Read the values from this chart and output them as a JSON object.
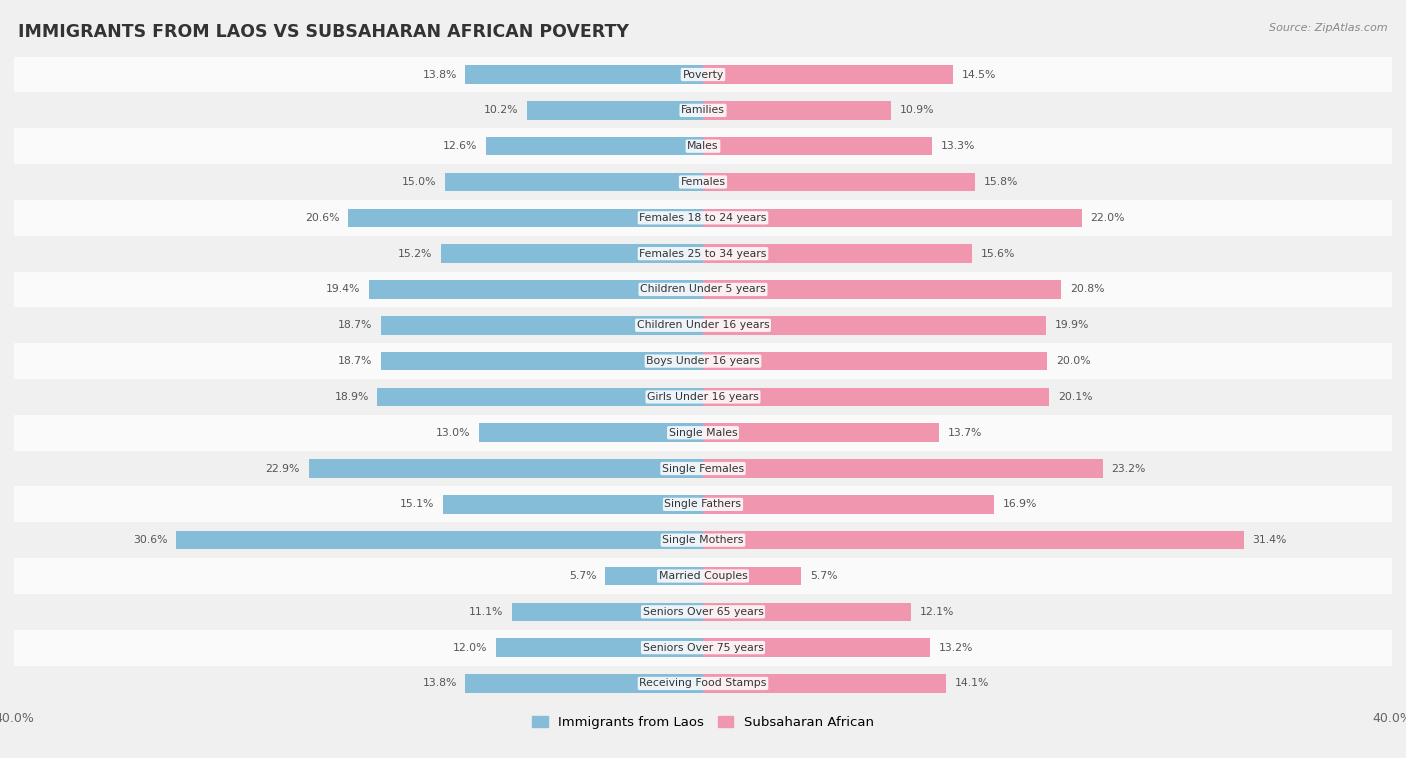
{
  "title": "IMMIGRANTS FROM LAOS VS SUBSAHARAN AFRICAN POVERTY",
  "source": "Source: ZipAtlas.com",
  "categories": [
    "Poverty",
    "Families",
    "Males",
    "Females",
    "Females 18 to 24 years",
    "Females 25 to 34 years",
    "Children Under 5 years",
    "Children Under 16 years",
    "Boys Under 16 years",
    "Girls Under 16 years",
    "Single Males",
    "Single Females",
    "Single Fathers",
    "Single Mothers",
    "Married Couples",
    "Seniors Over 65 years",
    "Seniors Over 75 years",
    "Receiving Food Stamps"
  ],
  "laos_values": [
    13.8,
    10.2,
    12.6,
    15.0,
    20.6,
    15.2,
    19.4,
    18.7,
    18.7,
    18.9,
    13.0,
    22.9,
    15.1,
    30.6,
    5.7,
    11.1,
    12.0,
    13.8
  ],
  "subsaharan_values": [
    14.5,
    10.9,
    13.3,
    15.8,
    22.0,
    15.6,
    20.8,
    19.9,
    20.0,
    20.1,
    13.7,
    23.2,
    16.9,
    31.4,
    5.7,
    12.1,
    13.2,
    14.1
  ],
  "laos_color": "#85bcd8",
  "subsaharan_color": "#f096af",
  "row_color_even": "#f0f0f0",
  "row_color_odd": "#fafafa",
  "background_color": "#f0f0f0",
  "x_max": 40.0,
  "legend_label_laos": "Immigrants from Laos",
  "legend_label_subsaharan": "Subsaharan African"
}
